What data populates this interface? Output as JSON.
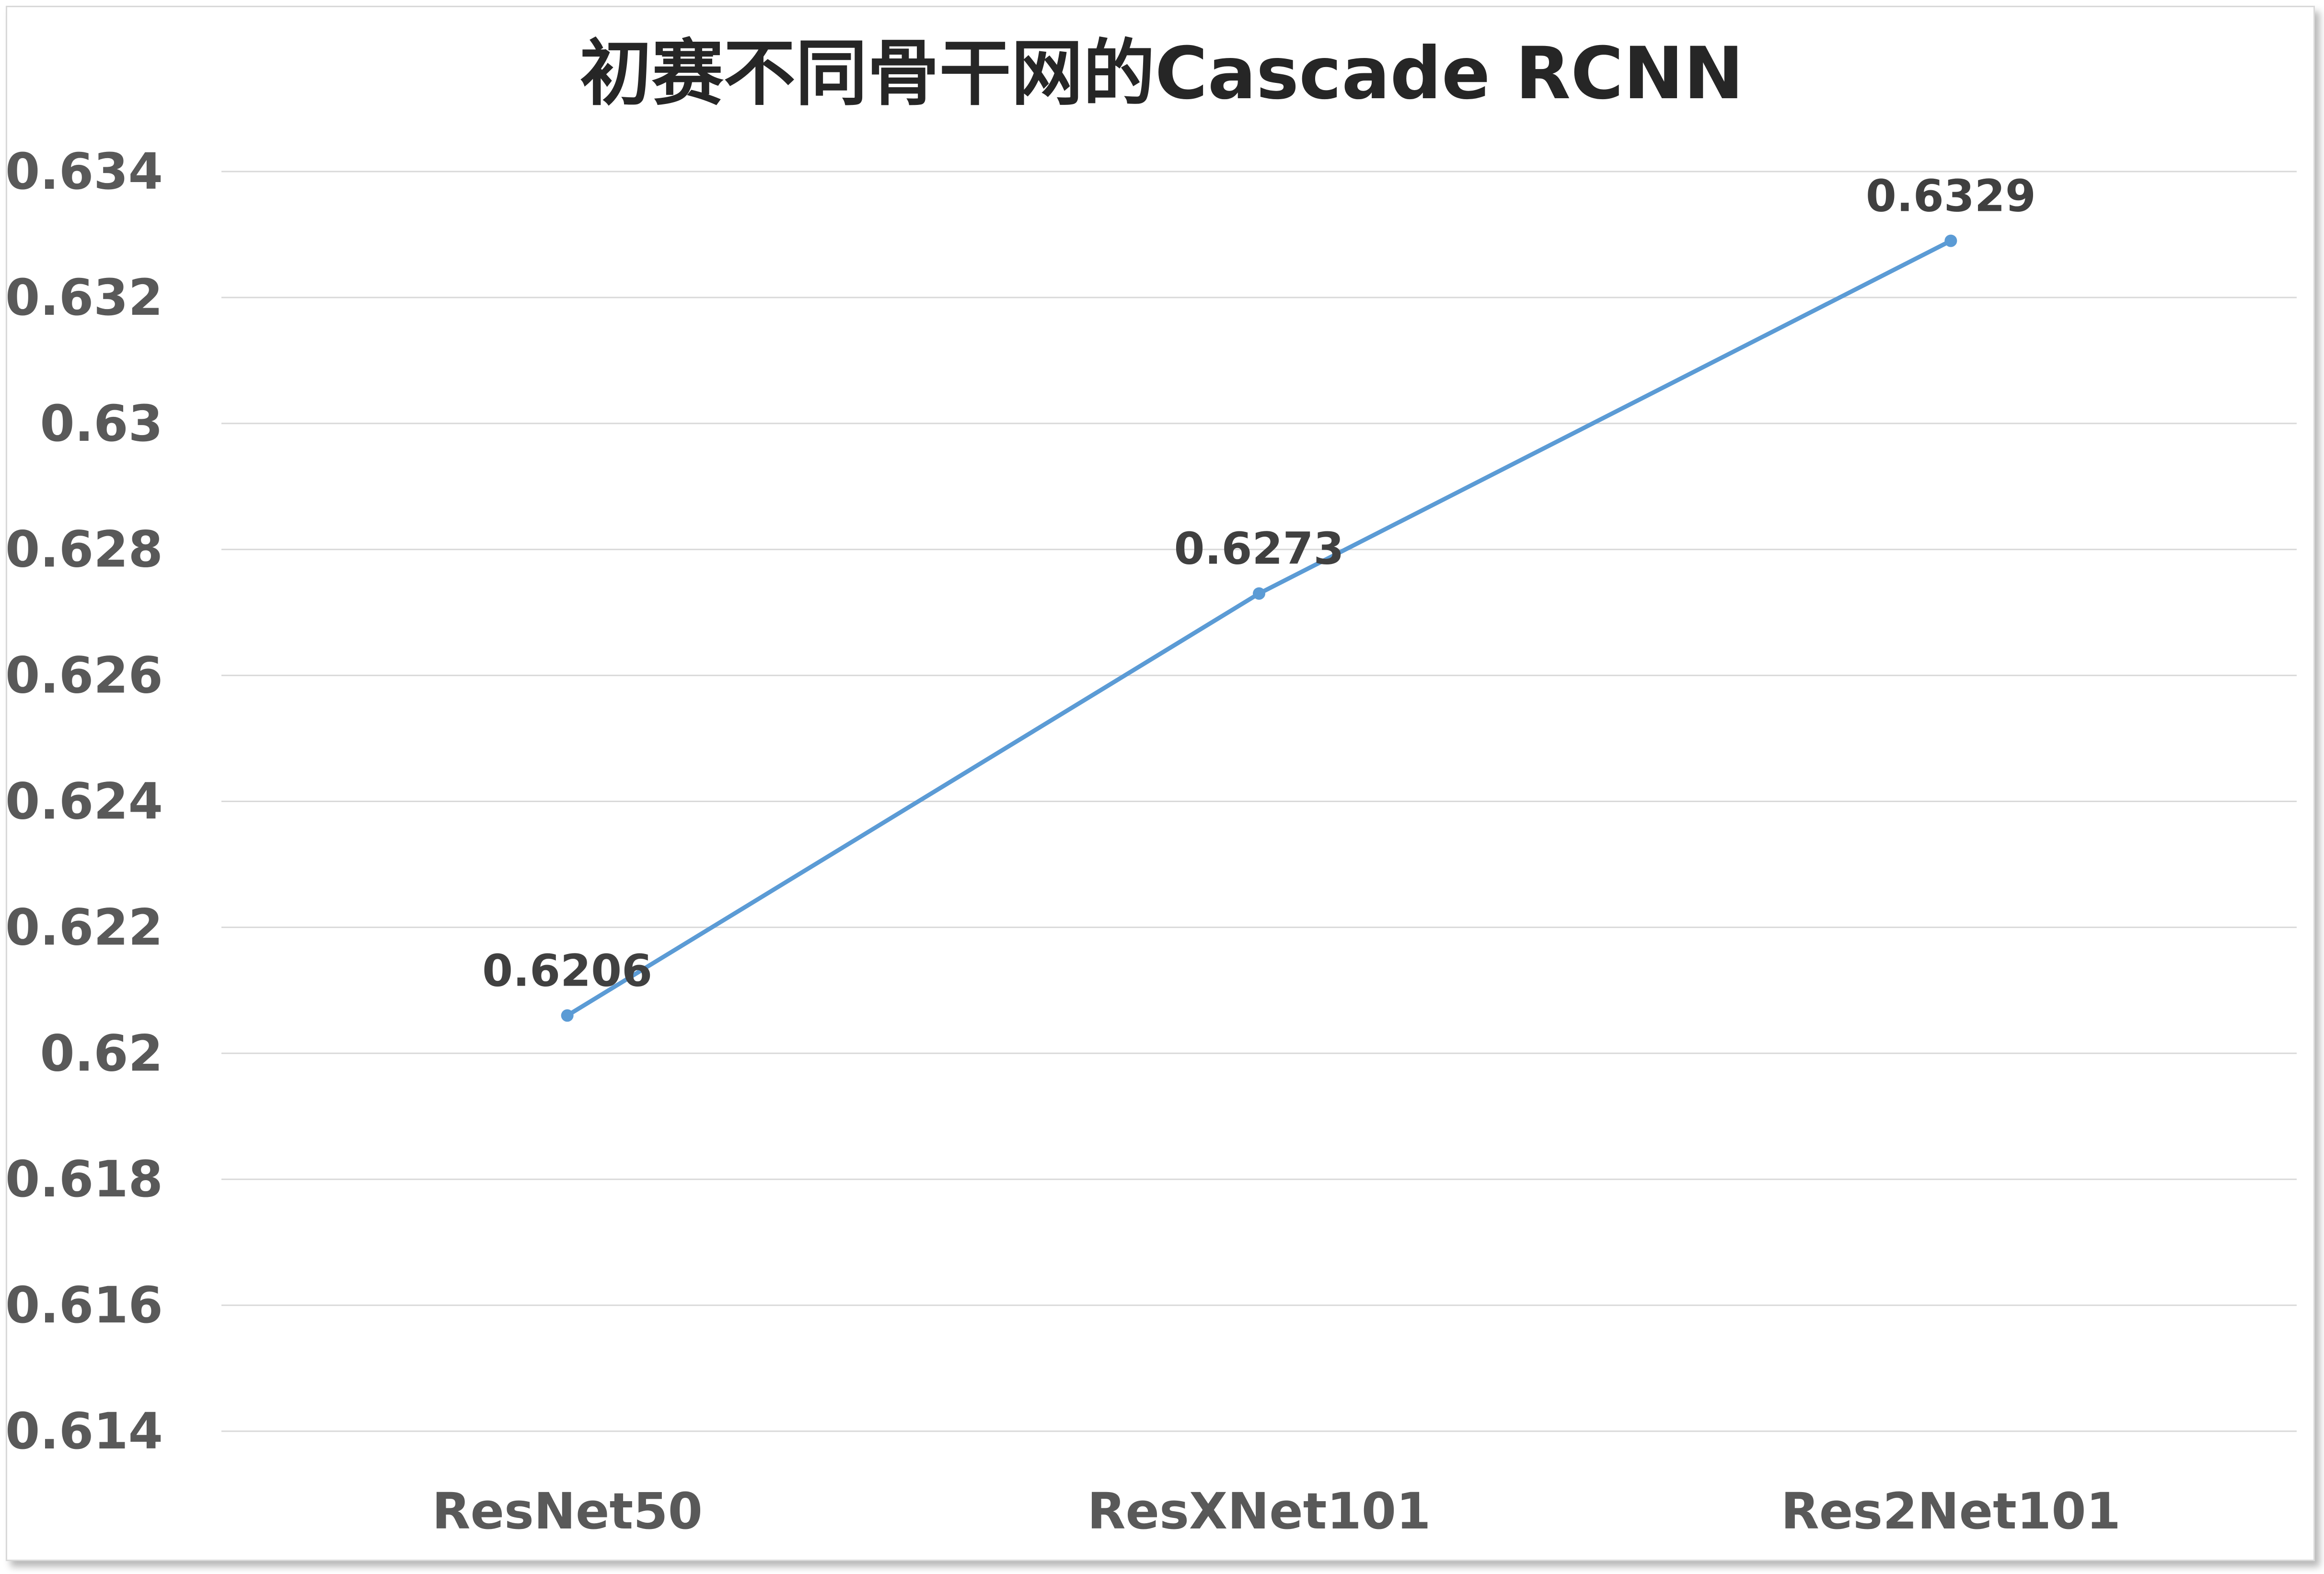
{
  "chart_data": {
    "type": "line",
    "title": "初赛不同骨干网的Cascade RCNN",
    "categories": [
      "ResNet50",
      "ResXNet101",
      "Res2Net101"
    ],
    "series": [
      {
        "values": [
          0.6206,
          0.6273,
          0.6329
        ],
        "color": "#5b9bd5"
      }
    ],
    "data_labels": [
      "0.6206",
      "0.6273",
      "0.6329"
    ],
    "ylim": [
      0.614,
      0.634
    ],
    "yticks": [
      "0.614",
      "0.616",
      "0.618",
      "0.62",
      "0.622",
      "0.624",
      "0.626",
      "0.628",
      "0.63",
      "0.632",
      "0.634"
    ],
    "grid": true,
    "legend": "none"
  }
}
